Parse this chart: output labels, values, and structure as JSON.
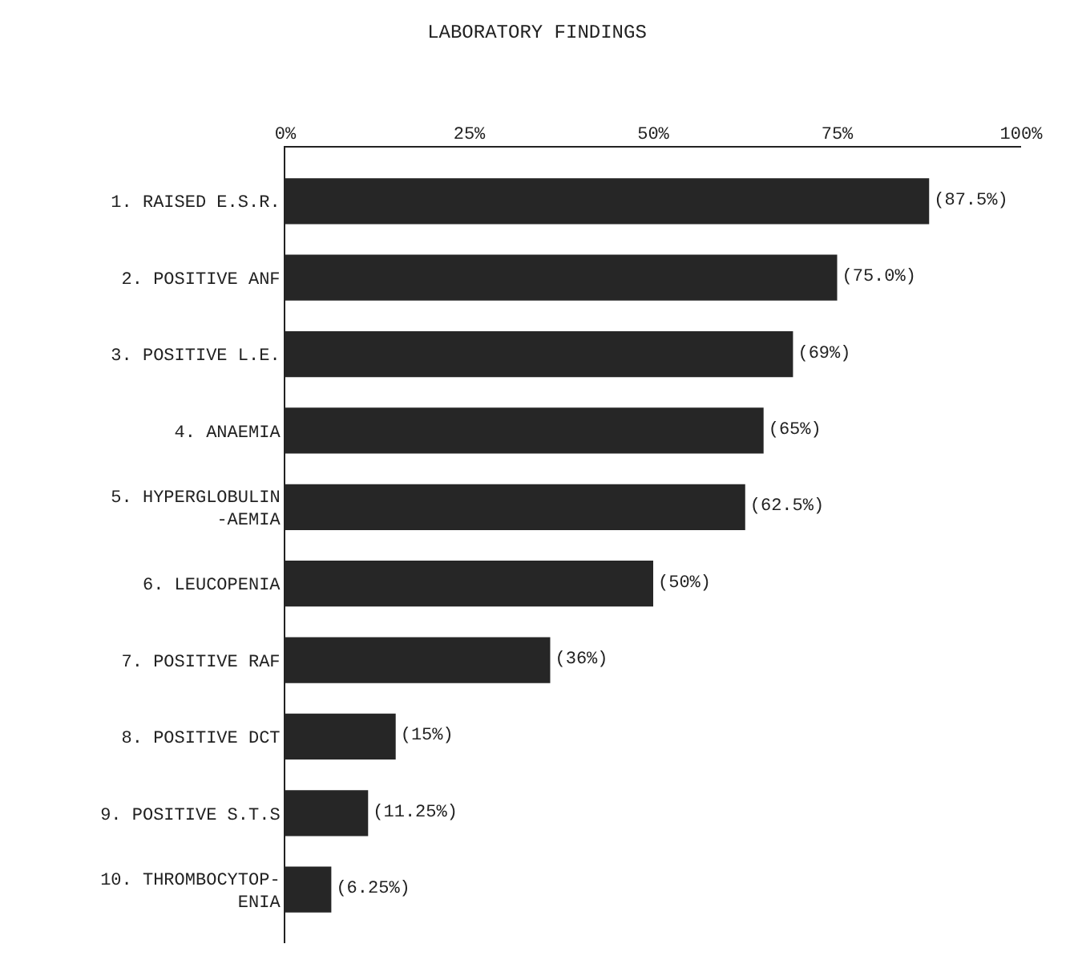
{
  "chart_data": {
    "type": "bar",
    "orientation": "horizontal",
    "title": "LABORATORY FINDINGS",
    "categories": [
      "1. RAISED E.S.R.",
      "2. POSITIVE ANF",
      "3. POSITIVE L.E.",
      "4. ANAEMIA",
      "5. HYPERGLOBULIN\n-AEMIA",
      "6. LEUCOPENIA",
      "7. POSITIVE RAF",
      "8. POSITIVE DCT",
      "9. POSITIVE S.T.S",
      "10. THROMBOCYTOP-\nENIA"
    ],
    "values": [
      87.5,
      75,
      69,
      65,
      62.5,
      50,
      36,
      15,
      11.25,
      6.25
    ],
    "value_labels": [
      "(87.5%)",
      "(75.0%)",
      "(69%)",
      "(65%)",
      "(62.5%)",
      "(50%)",
      "(36%)",
      "(15%)",
      "(11.25%)",
      "(6.25%)"
    ],
    "color": "#262626",
    "xlim": [
      0,
      100
    ],
    "xticks": [
      {
        "value": 0,
        "label": "0%"
      },
      {
        "value": 25,
        "label": "25%"
      },
      {
        "value": 50,
        "label": "50%"
      },
      {
        "value": 75,
        "label": "75%"
      },
      {
        "value": 100,
        "label": "100%"
      }
    ],
    "grid": false,
    "legend": false
  }
}
